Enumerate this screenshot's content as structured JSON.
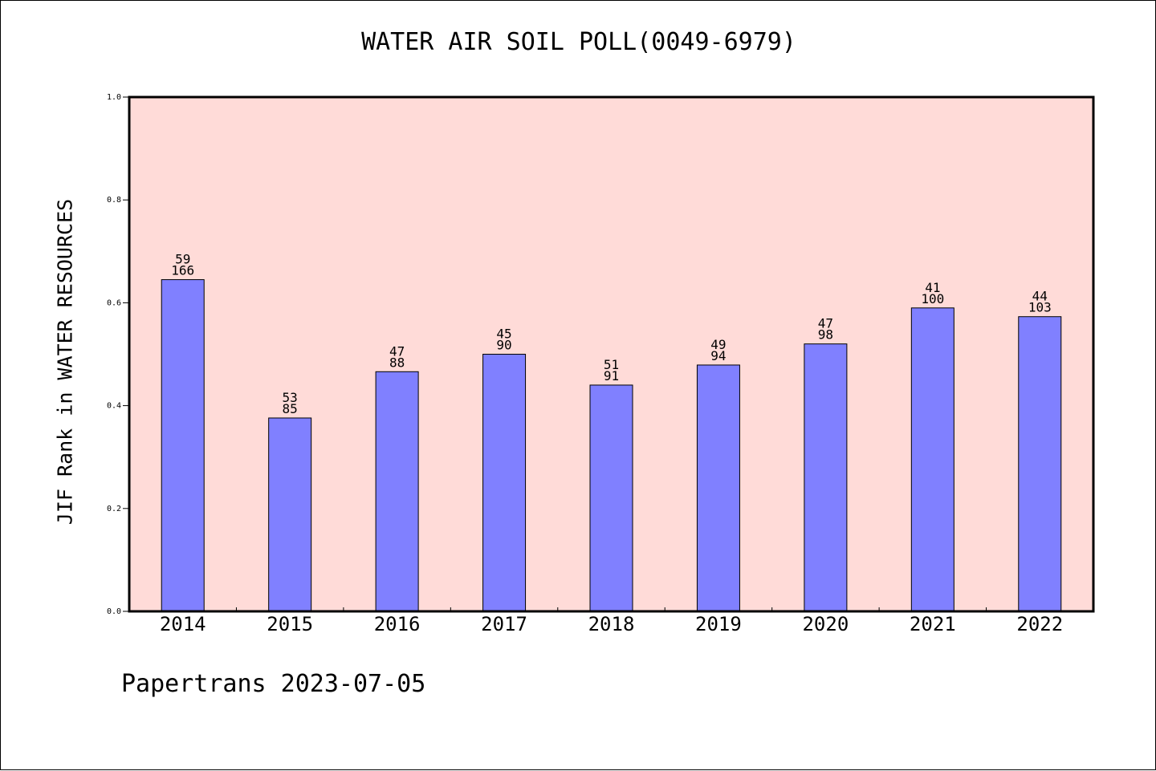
{
  "chart_data": {
    "type": "bar",
    "title": "WATER AIR SOIL POLL(0049-6979)",
    "ylabel": "JIF Rank in WATER RESOURCES",
    "xlabel": "",
    "ylim": [
      0,
      1.0
    ],
    "yticks": [
      "0.0",
      "0.2",
      "0.4",
      "0.6",
      "0.8",
      "1.0"
    ],
    "grid": false,
    "categories": [
      "2014",
      "2015",
      "2016",
      "2017",
      "2018",
      "2019",
      "2020",
      "2021",
      "2022"
    ],
    "values": [
      0.645,
      0.376,
      0.466,
      0.5,
      0.44,
      0.479,
      0.52,
      0.59,
      0.573
    ],
    "rank": [
      "59",
      "53",
      "47",
      "45",
      "51",
      "49",
      "47",
      "41",
      "44"
    ],
    "total": [
      "166",
      "85",
      "88",
      "90",
      "91",
      "94",
      "98",
      "100",
      "103"
    ],
    "bar_color": "#8080ff",
    "plot_background": "#ffdbd8"
  },
  "footer": "Papertrans 2023-07-05"
}
